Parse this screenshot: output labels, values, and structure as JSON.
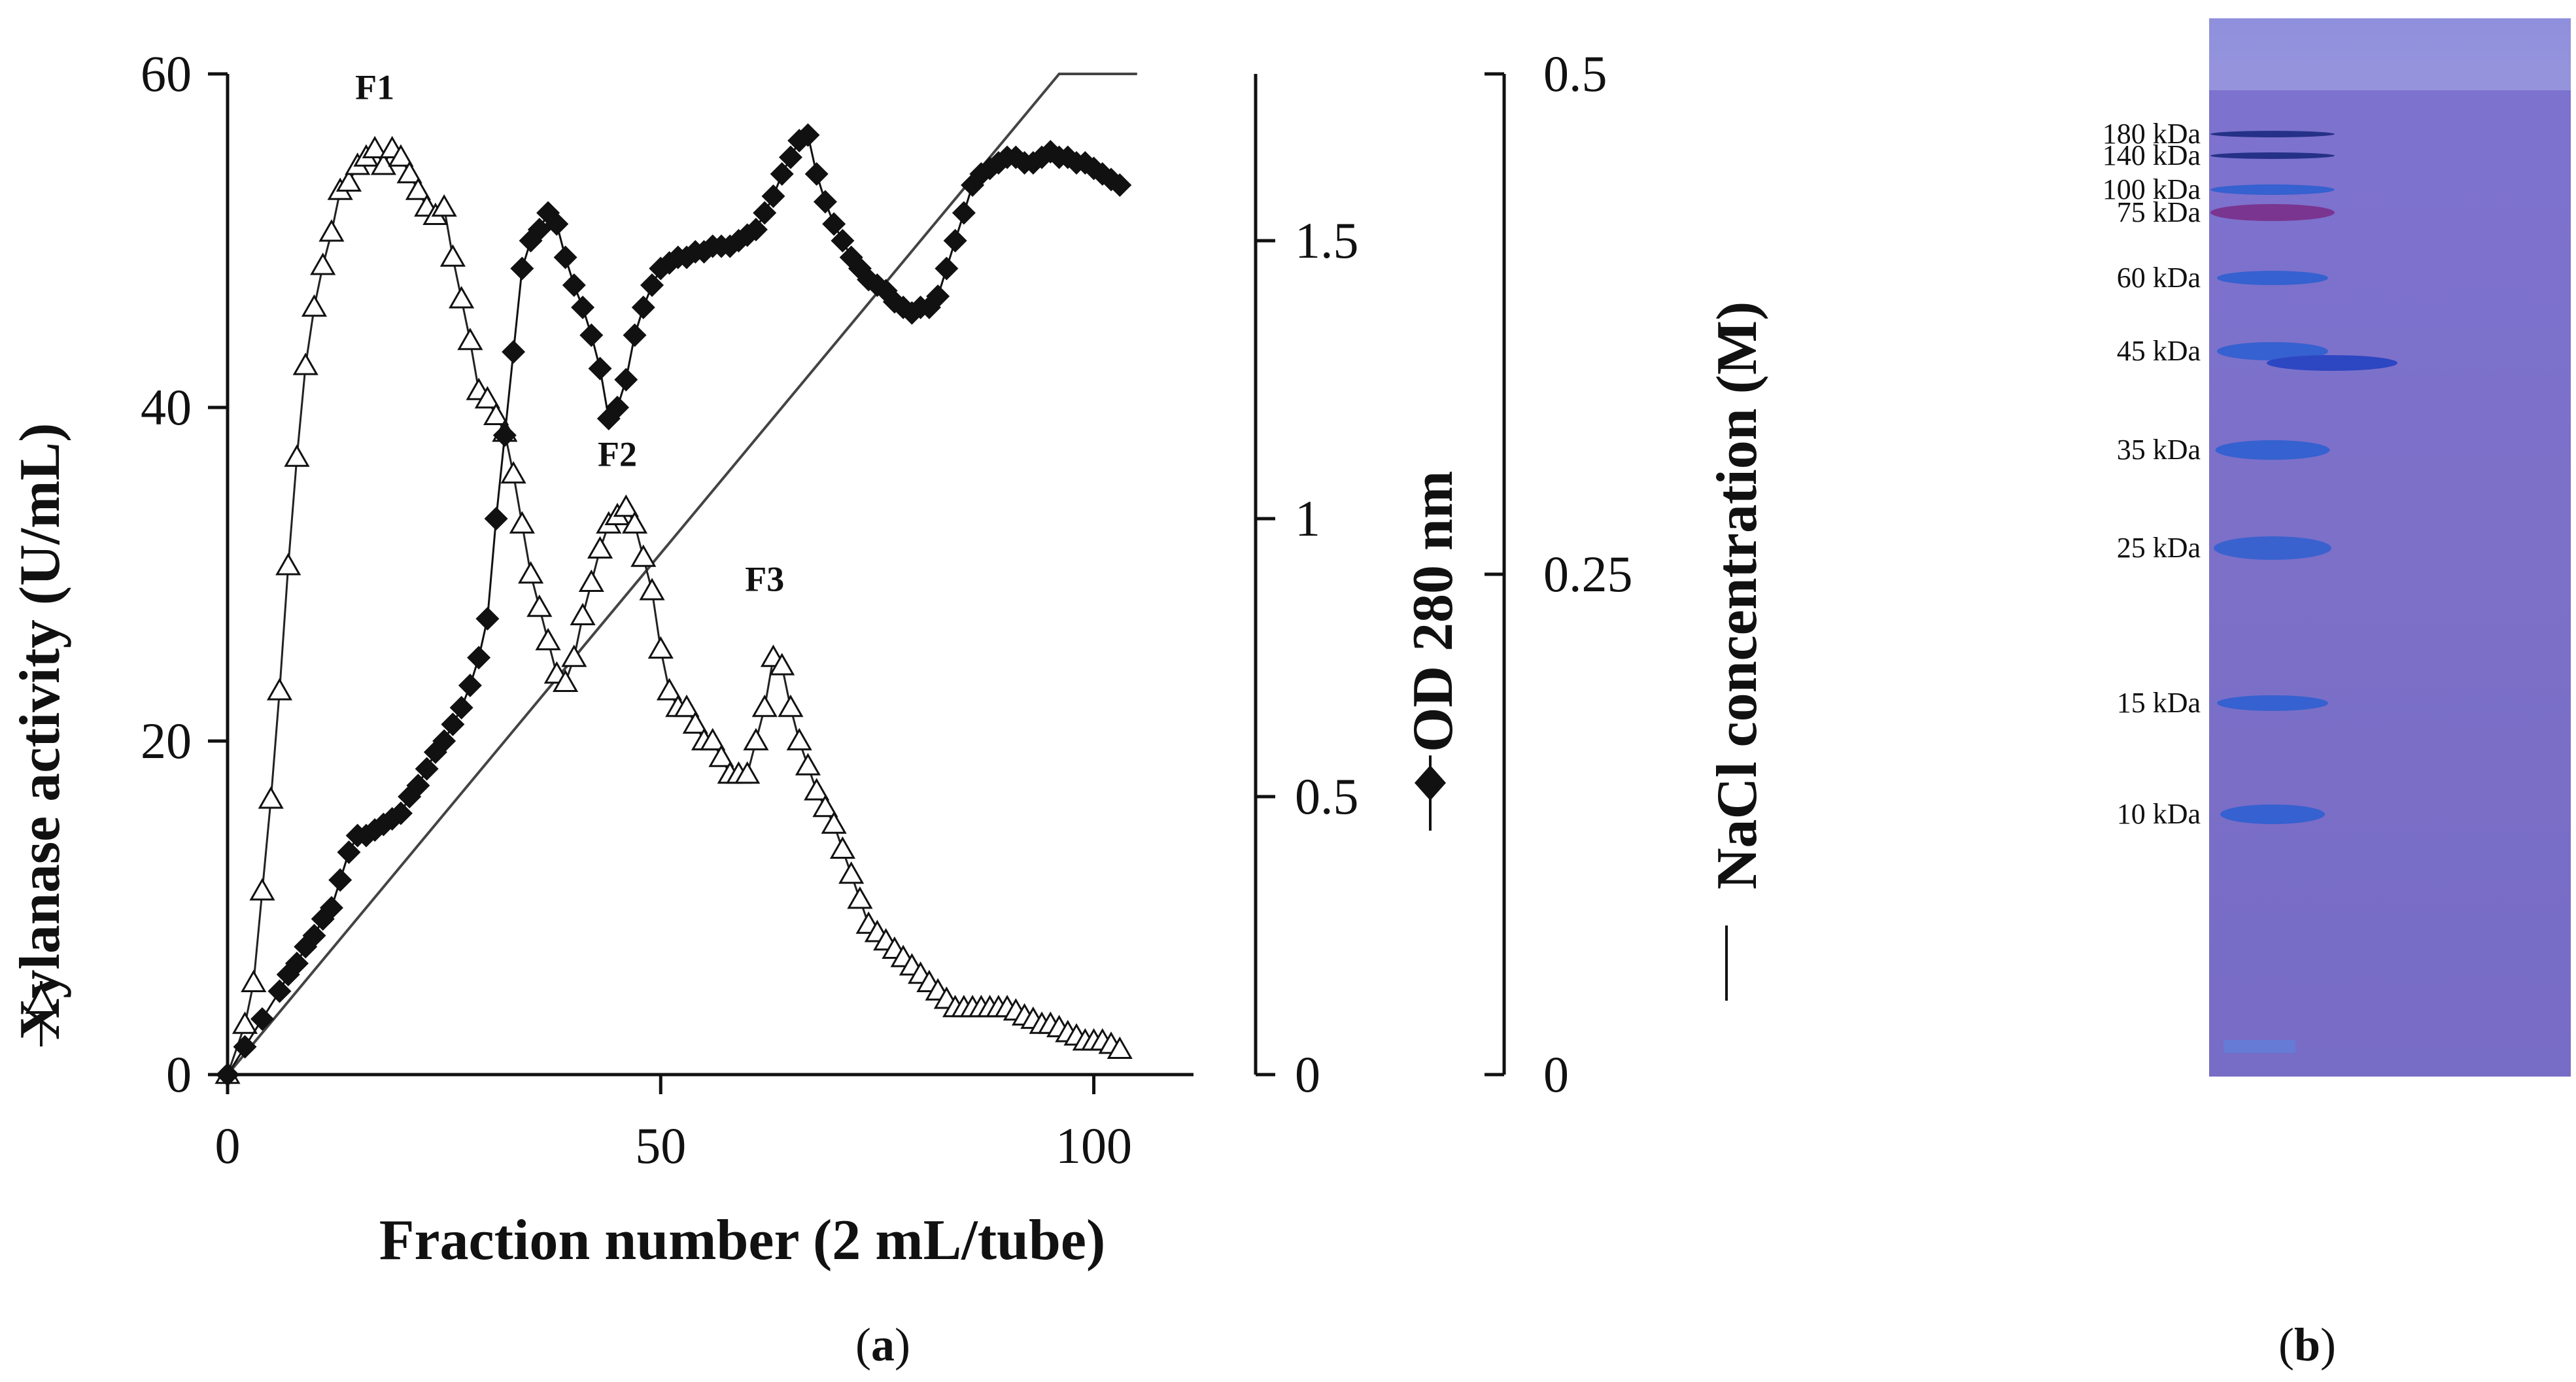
{
  "panel_a_label": "a",
  "panel_b_label": "b",
  "chart_data": {
    "type": "line",
    "title": "",
    "xlabel": "Fraction number (2 mL/tube)",
    "xlim": [
      0,
      110
    ],
    "xticks": [
      0,
      50,
      100
    ],
    "axes": {
      "left": {
        "label": "Xylanase activity (U/mL)",
        "lim": [
          0,
          60
        ],
        "ticks": [
          "0",
          "20",
          "40",
          "60"
        ],
        "tick_values": [
          0,
          20,
          40,
          60
        ]
      },
      "right1": {
        "label": "OD 280 nm",
        "lim": [
          0,
          1.8
        ],
        "ticks": [
          "0",
          "0.5",
          "1",
          "1.5"
        ],
        "tick_values": [
          0,
          0.5,
          1,
          1.5
        ]
      },
      "right2": {
        "label": "NaCl concentration (M)",
        "lim": [
          0,
          0.5
        ],
        "ticks": [
          "0",
          "0.25",
          "0.5"
        ],
        "tick_values": [
          0,
          0.25,
          0.5
        ]
      }
    },
    "series": [
      {
        "name": "Xylanase activity",
        "marker": "open-triangle",
        "axis": "left",
        "x": [
          0,
          2,
          3,
          4,
          5,
          6,
          7,
          8,
          9,
          10,
          11,
          12,
          13,
          14,
          15,
          16,
          17,
          18,
          19,
          20,
          21,
          22,
          23,
          24,
          25,
          26,
          27,
          28,
          29,
          30,
          31,
          32,
          33,
          34,
          35,
          36,
          37,
          38,
          39,
          40,
          41,
          42,
          43,
          44,
          45,
          46,
          47,
          48,
          49,
          50,
          51,
          52,
          53,
          54,
          55,
          56,
          57,
          58,
          59,
          60,
          61,
          62,
          63,
          64,
          65,
          66,
          67,
          68,
          69,
          70,
          71,
          72,
          73,
          74,
          75,
          76,
          77,
          78,
          79,
          80,
          81,
          82,
          83,
          84,
          85,
          86,
          87,
          88,
          89,
          90,
          91,
          92,
          93,
          94,
          95,
          96,
          97,
          98,
          99,
          100,
          101,
          102,
          103
        ],
        "values": [
          0,
          3,
          5.5,
          11,
          16.5,
          23,
          30.5,
          37,
          42.5,
          46,
          48.5,
          50.5,
          53,
          53.5,
          54.5,
          55,
          55.5,
          54.5,
          55.5,
          55,
          54,
          53,
          52,
          51.5,
          52,
          49,
          46.5,
          44,
          41,
          40.5,
          39.5,
          38.5,
          36,
          33,
          30,
          28,
          26,
          24,
          23.5,
          25,
          27.5,
          29.5,
          31.5,
          33,
          33.5,
          34,
          33,
          31,
          29,
          25.5,
          23,
          22,
          22,
          21,
          20,
          20,
          19,
          18,
          18,
          18,
          20,
          22,
          25,
          24.5,
          22,
          20,
          18.5,
          17,
          16,
          15,
          13.5,
          12,
          10.5,
          9,
          8.5,
          8,
          7.5,
          7,
          6.5,
          6,
          5.5,
          5,
          4.5,
          4,
          4,
          4,
          4,
          4,
          4,
          4,
          3.8,
          3.5,
          3.3,
          3,
          3,
          2.8,
          2.5,
          2.3,
          2,
          2,
          2,
          1.8,
          1.5
        ]
      },
      {
        "name": "OD 280 nm",
        "marker": "filled-diamond",
        "axis": "right1",
        "x": [
          0,
          2,
          4,
          6,
          7,
          8,
          9,
          10,
          11,
          12,
          13,
          14,
          15,
          16,
          17,
          18,
          19,
          20,
          21,
          22,
          23,
          24,
          25,
          26,
          27,
          28,
          29,
          30,
          31,
          32,
          33,
          34,
          35,
          36,
          37,
          38,
          39,
          40,
          41,
          42,
          43,
          44,
          45,
          46,
          47,
          48,
          49,
          50,
          51,
          52,
          53,
          54,
          55,
          56,
          57,
          58,
          59,
          60,
          61,
          62,
          63,
          64,
          65,
          66,
          67,
          68,
          69,
          70,
          71,
          72,
          73,
          74,
          75,
          76,
          77,
          78,
          79,
          80,
          81,
          82,
          83,
          84,
          85,
          86,
          87,
          88,
          89,
          90,
          91,
          92,
          93,
          94,
          95,
          96,
          97,
          98,
          99,
          100,
          101,
          102,
          103
        ],
        "values": [
          0,
          0.05,
          0.1,
          0.15,
          0.18,
          0.2,
          0.23,
          0.25,
          0.28,
          0.3,
          0.35,
          0.4,
          0.43,
          0.43,
          0.44,
          0.45,
          0.46,
          0.47,
          0.5,
          0.52,
          0.55,
          0.58,
          0.6,
          0.63,
          0.66,
          0.7,
          0.75,
          0.82,
          1.0,
          1.15,
          1.3,
          1.45,
          1.5,
          1.52,
          1.55,
          1.53,
          1.47,
          1.42,
          1.38,
          1.33,
          1.27,
          1.18,
          1.2,
          1.25,
          1.33,
          1.38,
          1.42,
          1.45,
          1.46,
          1.47,
          1.47,
          1.48,
          1.48,
          1.49,
          1.49,
          1.49,
          1.5,
          1.51,
          1.52,
          1.55,
          1.58,
          1.62,
          1.65,
          1.68,
          1.69,
          1.62,
          1.57,
          1.53,
          1.5,
          1.47,
          1.45,
          1.43,
          1.42,
          1.41,
          1.39,
          1.38,
          1.37,
          1.38,
          1.38,
          1.4,
          1.45,
          1.5,
          1.55,
          1.6,
          1.62,
          1.63,
          1.64,
          1.65,
          1.65,
          1.64,
          1.64,
          1.65,
          1.66,
          1.65,
          1.65,
          1.64,
          1.64,
          1.63,
          1.62,
          1.61,
          1.6
        ]
      },
      {
        "name": "NaCl concentration",
        "marker": "none",
        "axis": "right2",
        "x": [
          0,
          96,
          105
        ],
        "values": [
          0,
          0.5,
          0.5
        ]
      }
    ],
    "annotations": [
      {
        "text": "F1",
        "x": 17,
        "y": 58.5,
        "axis": "left"
      },
      {
        "text": "F2",
        "x": 45,
        "y": 36.5,
        "axis": "left"
      },
      {
        "text": "F3",
        "x": 62,
        "y": 29,
        "axis": "left"
      }
    ],
    "legend": "inline markers beside axis titles"
  },
  "gel": {
    "ladder": [
      "180 kDa",
      "140 kDa",
      "100 kDa",
      "75 kDa",
      "60 kDa",
      "45 kDa",
      "35 kDa",
      "25 kDa",
      "15 kDa",
      "10 kDa"
    ],
    "sample_band_kda": 45,
    "colors": {
      "gel": "#7b6fc9",
      "marker_band": "#2f5fd0",
      "marker_75": "#7a2f8a",
      "sample_band": "#3050c8"
    }
  }
}
